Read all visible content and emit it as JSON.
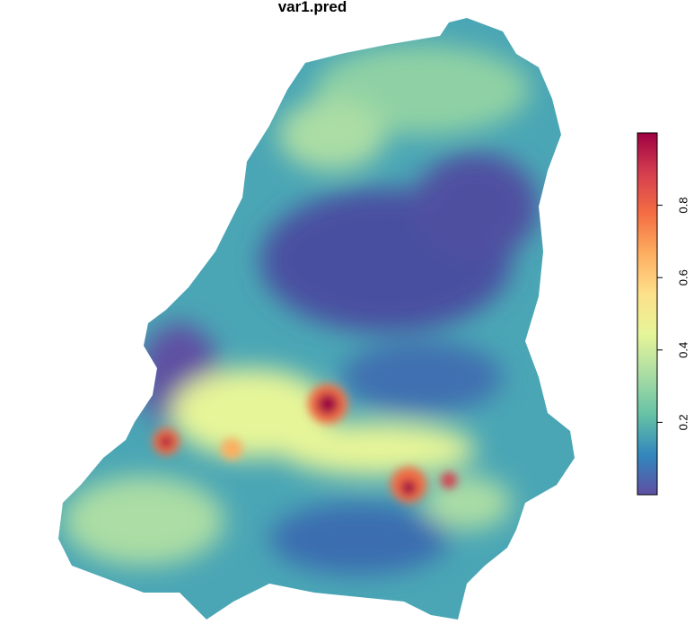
{
  "chart_data": {
    "type": "raster",
    "title": "var1.pred",
    "colorbar": {
      "lim": [
        0,
        1
      ],
      "ticks": [
        0.2,
        0.4,
        0.6,
        0.8
      ],
      "colors": [
        "#5e4fa2",
        "#3288bd",
        "#66c2a5",
        "#abdda4",
        "#e6f598",
        "#fee08b",
        "#fdae61",
        "#f46d43",
        "#d53e4f",
        "#9e0142"
      ]
    }
  }
}
